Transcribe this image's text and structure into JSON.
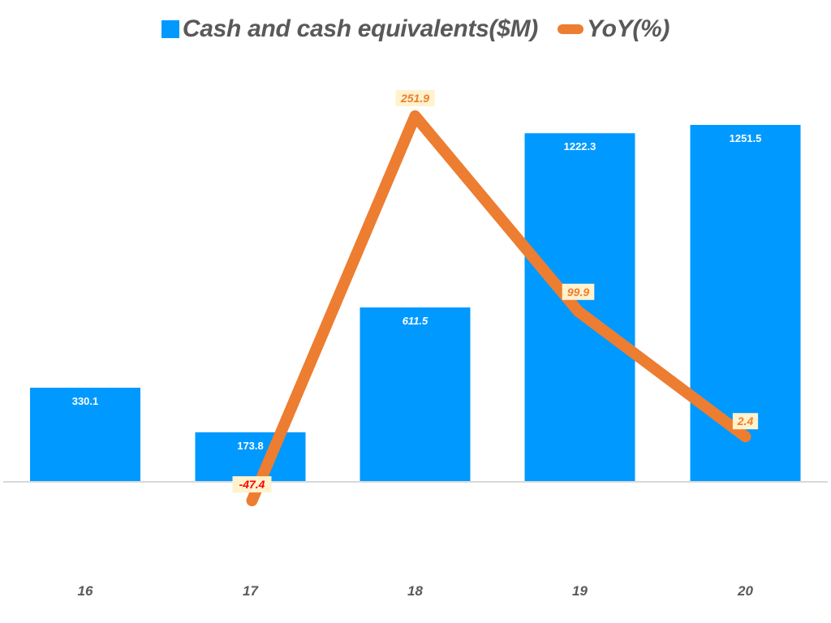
{
  "chart_data": {
    "type": "bar+line",
    "title": "",
    "categories": [
      "16",
      "17",
      "18",
      "19",
      "20"
    ],
    "series": [
      {
        "name": "Cash and cash equivalents($M)",
        "type": "bar",
        "color": "#0099FF",
        "values": [
          330.1,
          173.8,
          611.5,
          1222.3,
          1251.5
        ],
        "labels": [
          "330.1",
          "173.8",
          "611.5",
          "1222.3",
          "1251.5"
        ]
      },
      {
        "name": "YoY(%)",
        "type": "line",
        "color": "#ED7D31",
        "values": [
          null,
          -47.4,
          251.9,
          99.9,
          2.4
        ],
        "labels": [
          "",
          "-47.4",
          "251.9",
          "99.9",
          "2.4"
        ],
        "label_colors": [
          "",
          "#FF0000",
          "#ED7D31",
          "#ED7D31",
          "#ED7D31"
        ],
        "label_bg": "#FFF2CC"
      }
    ],
    "xlabel": "",
    "ylabel": "",
    "y_axis_visible": false,
    "grid": false,
    "legend_position": "top"
  },
  "legend": {
    "bar_label": "Cash and cash equivalents($M)",
    "line_label": "YoY(%)"
  },
  "colors": {
    "bar": "#0099FF",
    "line": "#ED7D31",
    "axis": "#D9D9D9",
    "tick_text": "#595959",
    "negative_label": "#FF0000",
    "label_bg": "#FFF2CC"
  }
}
